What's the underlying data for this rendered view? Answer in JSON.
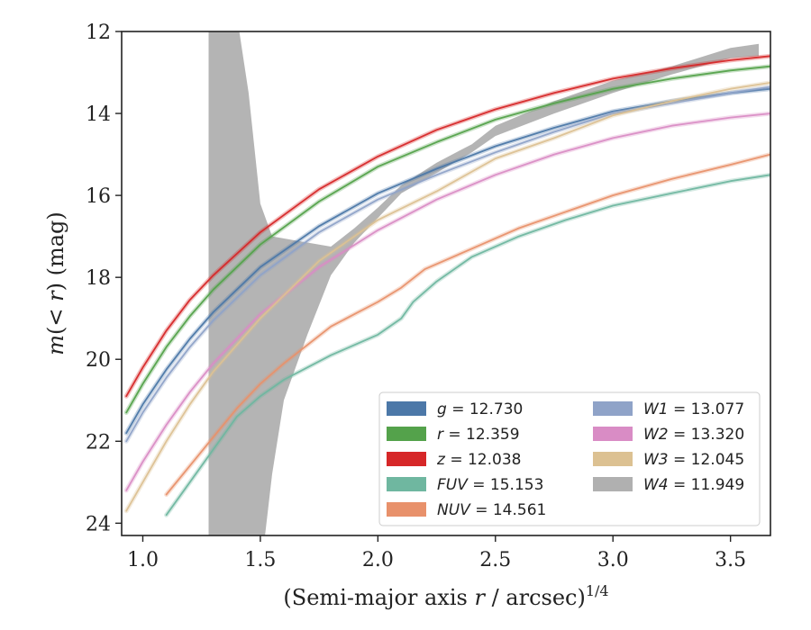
{
  "chart_data": {
    "type": "line",
    "xlabel": "(Semi-major axis r / arcsec)",
    "xlabel_parts": {
      "lead": "(Semi-major axis ",
      "var": "r",
      "tail": " / arcsec)",
      "sup": "1/4"
    },
    "ylabel": "m(< r) (mag)",
    "ylabel_parts": {
      "m": "m",
      "open": "(",
      "lt": "< ",
      "r": "r",
      "close": ")",
      "unit": " (mag)"
    },
    "xlim": [
      0.91,
      3.67
    ],
    "ylim": [
      24.3,
      12.0
    ],
    "y_inverted": true,
    "xticks": [
      1.0,
      1.5,
      2.0,
      2.5,
      3.0,
      3.5
    ],
    "xtick_labels": [
      "1.0",
      "1.5",
      "2.0",
      "2.5",
      "3.0",
      "3.5"
    ],
    "yticks": [
      12,
      14,
      16,
      18,
      20,
      22,
      24
    ],
    "ytick_labels": [
      "12",
      "14",
      "16",
      "18",
      "20",
      "22",
      "24"
    ],
    "grid": false,
    "legend_position": "bottom-right",
    "series": [
      {
        "name": "g",
        "value": "12.730",
        "color": "#4c78a8",
        "points": [
          [
            0.93,
            21.8
          ],
          [
            1.0,
            21.1
          ],
          [
            1.1,
            20.25
          ],
          [
            1.2,
            19.5
          ],
          [
            1.3,
            18.85
          ],
          [
            1.5,
            17.75
          ],
          [
            1.75,
            16.75
          ],
          [
            2.0,
            15.95
          ],
          [
            2.25,
            15.35
          ],
          [
            2.5,
            14.8
          ],
          [
            2.75,
            14.35
          ],
          [
            3.0,
            13.95
          ],
          [
            3.25,
            13.7
          ],
          [
            3.5,
            13.5
          ],
          [
            3.67,
            13.4
          ]
        ]
      },
      {
        "name": "r",
        "value": "12.359",
        "color": "#54a24b",
        "points": [
          [
            0.93,
            21.3
          ],
          [
            1.0,
            20.6
          ],
          [
            1.1,
            19.7
          ],
          [
            1.2,
            18.95
          ],
          [
            1.3,
            18.3
          ],
          [
            1.5,
            17.2
          ],
          [
            1.75,
            16.15
          ],
          [
            2.0,
            15.3
          ],
          [
            2.25,
            14.7
          ],
          [
            2.5,
            14.15
          ],
          [
            2.75,
            13.75
          ],
          [
            3.0,
            13.4
          ],
          [
            3.25,
            13.15
          ],
          [
            3.5,
            12.95
          ],
          [
            3.67,
            12.85
          ]
        ]
      },
      {
        "name": "z",
        "value": "12.038",
        "color": "#d62728",
        "points": [
          [
            0.93,
            20.9
          ],
          [
            1.0,
            20.2
          ],
          [
            1.1,
            19.3
          ],
          [
            1.2,
            18.55
          ],
          [
            1.3,
            17.95
          ],
          [
            1.5,
            16.9
          ],
          [
            1.75,
            15.85
          ],
          [
            2.0,
            15.05
          ],
          [
            2.25,
            14.4
          ],
          [
            2.5,
            13.9
          ],
          [
            2.75,
            13.5
          ],
          [
            3.0,
            13.15
          ],
          [
            3.25,
            12.9
          ],
          [
            3.5,
            12.7
          ],
          [
            3.67,
            12.6
          ]
        ]
      },
      {
        "name": "FUV",
        "value": "15.153",
        "color": "#6fb7a0",
        "points": [
          [
            1.1,
            23.8
          ],
          [
            1.2,
            23.0
          ],
          [
            1.3,
            22.2
          ],
          [
            1.4,
            21.4
          ],
          [
            1.5,
            20.9
          ],
          [
            1.6,
            20.5
          ],
          [
            1.7,
            20.2
          ],
          [
            1.8,
            19.9
          ],
          [
            1.9,
            19.65
          ],
          [
            2.0,
            19.4
          ],
          [
            2.1,
            19.0
          ],
          [
            2.15,
            18.6
          ],
          [
            2.25,
            18.1
          ],
          [
            2.4,
            17.5
          ],
          [
            2.6,
            17.0
          ],
          [
            2.8,
            16.6
          ],
          [
            3.0,
            16.25
          ],
          [
            3.25,
            15.95
          ],
          [
            3.5,
            15.65
          ],
          [
            3.67,
            15.5
          ]
        ]
      },
      {
        "name": "NUV",
        "value": "14.561",
        "color": "#e8916b",
        "points": [
          [
            1.1,
            23.3
          ],
          [
            1.2,
            22.6
          ],
          [
            1.3,
            21.9
          ],
          [
            1.4,
            21.2
          ],
          [
            1.5,
            20.6
          ],
          [
            1.6,
            20.1
          ],
          [
            1.7,
            19.65
          ],
          [
            1.8,
            19.2
          ],
          [
            1.9,
            18.9
          ],
          [
            2.0,
            18.6
          ],
          [
            2.1,
            18.25
          ],
          [
            2.2,
            17.8
          ],
          [
            2.4,
            17.3
          ],
          [
            2.6,
            16.8
          ],
          [
            2.8,
            16.4
          ],
          [
            3.0,
            16.0
          ],
          [
            3.25,
            15.6
          ],
          [
            3.5,
            15.25
          ],
          [
            3.67,
            15.0
          ]
        ]
      },
      {
        "name": "W1",
        "value": "13.077",
        "color": "#8fa3c8",
        "points": [
          [
            0.93,
            22.0
          ],
          [
            1.0,
            21.3
          ],
          [
            1.1,
            20.45
          ],
          [
            1.2,
            19.7
          ],
          [
            1.3,
            19.05
          ],
          [
            1.5,
            17.95
          ],
          [
            1.75,
            16.9
          ],
          [
            2.0,
            16.1
          ],
          [
            2.25,
            15.5
          ],
          [
            2.5,
            14.95
          ],
          [
            2.75,
            14.45
          ],
          [
            3.0,
            14.0
          ],
          [
            3.25,
            13.75
          ],
          [
            3.5,
            13.5
          ],
          [
            3.67,
            13.35
          ]
        ]
      },
      {
        "name": "W2",
        "value": "13.320",
        "color": "#d98cc5",
        "points": [
          [
            0.93,
            23.2
          ],
          [
            1.0,
            22.5
          ],
          [
            1.1,
            21.6
          ],
          [
            1.2,
            20.8
          ],
          [
            1.3,
            20.1
          ],
          [
            1.5,
            18.9
          ],
          [
            1.75,
            17.75
          ],
          [
            2.0,
            16.85
          ],
          [
            2.25,
            16.1
          ],
          [
            2.5,
            15.5
          ],
          [
            2.75,
            15.0
          ],
          [
            3.0,
            14.6
          ],
          [
            3.25,
            14.3
          ],
          [
            3.5,
            14.1
          ],
          [
            3.67,
            14.0
          ]
        ]
      },
      {
        "name": "W3",
        "value": "12.045",
        "color": "#dcc192",
        "points": [
          [
            0.93,
            23.7
          ],
          [
            1.0,
            23.0
          ],
          [
            1.1,
            22.0
          ],
          [
            1.2,
            21.1
          ],
          [
            1.3,
            20.3
          ],
          [
            1.5,
            19.0
          ],
          [
            1.75,
            17.6
          ],
          [
            2.0,
            16.6
          ],
          [
            2.25,
            15.9
          ],
          [
            2.5,
            15.1
          ],
          [
            2.75,
            14.6
          ],
          [
            3.0,
            14.05
          ],
          [
            3.25,
            13.7
          ],
          [
            3.5,
            13.4
          ],
          [
            3.67,
            13.25
          ]
        ]
      },
      {
        "name": "W4",
        "value": "11.949",
        "color": "#b0b0b0",
        "band_upper": [
          [
            1.28,
            11.6
          ],
          [
            1.4,
            11.6
          ],
          [
            1.45,
            13.5
          ],
          [
            1.5,
            16.2
          ],
          [
            1.55,
            17.0
          ],
          [
            1.65,
            17.1
          ],
          [
            1.8,
            17.25
          ],
          [
            1.9,
            16.8
          ],
          [
            2.0,
            16.3
          ],
          [
            2.1,
            15.75
          ],
          [
            2.25,
            15.2
          ],
          [
            2.4,
            14.75
          ],
          [
            2.5,
            14.3
          ],
          [
            2.75,
            13.7
          ],
          [
            3.0,
            13.2
          ],
          [
            3.25,
            12.85
          ],
          [
            3.5,
            12.4
          ],
          [
            3.62,
            12.3
          ]
        ],
        "band_lower": [
          [
            3.62,
            12.6
          ],
          [
            3.5,
            12.65
          ],
          [
            3.25,
            13.05
          ],
          [
            3.0,
            13.5
          ],
          [
            2.75,
            14.0
          ],
          [
            2.5,
            14.55
          ],
          [
            2.4,
            14.95
          ],
          [
            2.25,
            15.45
          ],
          [
            2.1,
            15.95
          ],
          [
            2.0,
            16.55
          ],
          [
            1.9,
            17.15
          ],
          [
            1.8,
            17.95
          ],
          [
            1.7,
            19.4
          ],
          [
            1.6,
            21.0
          ],
          [
            1.55,
            22.8
          ],
          [
            1.52,
            24.3
          ],
          [
            1.28,
            24.3
          ]
        ]
      }
    ]
  }
}
